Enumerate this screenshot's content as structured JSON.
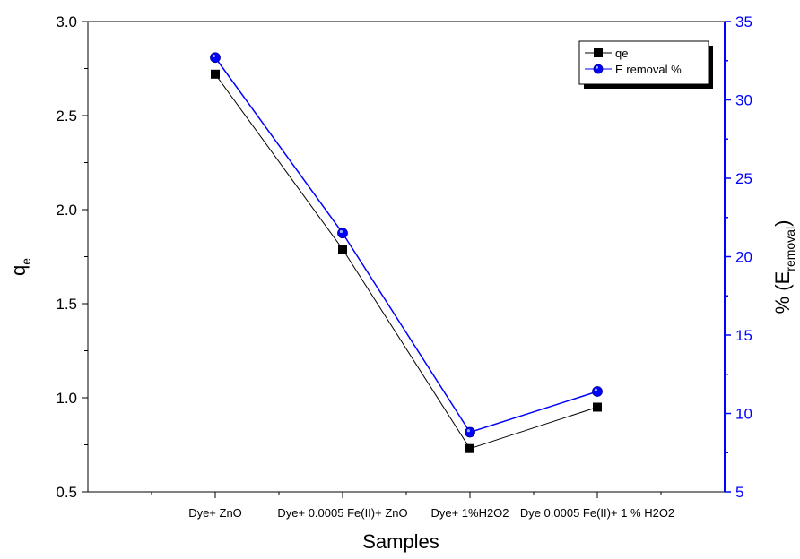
{
  "chart_data": {
    "type": "line",
    "xlabel": "Samples",
    "ylabel_left": {
      "main": "q",
      "sub": "e"
    },
    "ylabel_right": {
      "prefix": "% (E",
      "sub": "removal",
      "suffix": ")"
    },
    "categories": [
      "Dye+ ZnO",
      "Dye+ 0.0005 Fe(II)+ ZnO",
      "Dye+ 1%H2O2",
      "Dye 0.0005 Fe(II)+ 1 % H2O2"
    ],
    "ylim_left": [
      0.5,
      3.0
    ],
    "ylim_right": [
      5,
      35
    ],
    "yticks_left": [
      "0.5",
      "1.0",
      "1.5",
      "2.0",
      "2.5",
      "3.0"
    ],
    "yticks_right": [
      "5",
      "10",
      "15",
      "20",
      "25",
      "30",
      "35"
    ],
    "series": [
      {
        "name": "qe",
        "axis": "left",
        "color": "#000000",
        "marker": "square",
        "values": [
          2.72,
          1.79,
          0.73,
          0.95
        ]
      },
      {
        "name": "E removal %",
        "axis": "right",
        "color": "#0000ff",
        "marker": "circle",
        "values": [
          32.7,
          21.5,
          8.8,
          11.4
        ]
      }
    ],
    "grid": false,
    "legend_position": "top-right",
    "colors": {
      "left_axis": "#000000",
      "right_axis": "#0000ff"
    }
  }
}
